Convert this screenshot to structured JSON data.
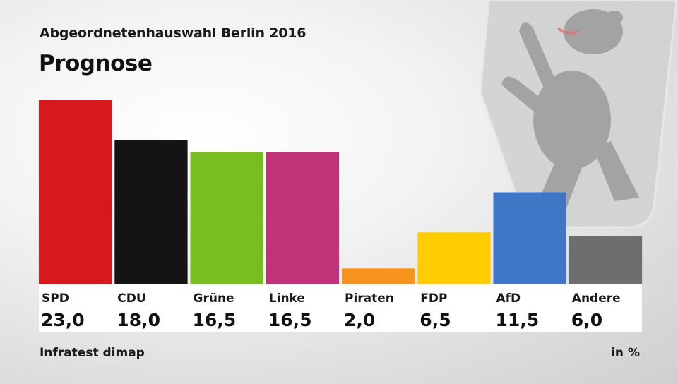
{
  "header": {
    "supertitle": "Abgeordnetenhauswahl Berlin 2016",
    "title": "Prognose"
  },
  "footer": {
    "source": "Infratest dimap",
    "unit": "in %"
  },
  "background_icon": "berlin-bear-crest-icon",
  "chart_data": {
    "type": "bar",
    "categories": [
      "SPD",
      "CDU",
      "Grüne",
      "Linke",
      "Piraten",
      "FDP",
      "AfD",
      "Andere"
    ],
    "values": [
      23.0,
      18.0,
      16.5,
      16.5,
      2.0,
      6.5,
      11.5,
      6.0
    ],
    "value_labels": [
      "23,0",
      "18,0",
      "16,5",
      "16,5",
      "2,0",
      "6,5",
      "11,5",
      "6,0"
    ],
    "colors": [
      "#d7191c",
      "#141414",
      "#78be20",
      "#c23279",
      "#f7941d",
      "#ffcc00",
      "#3f76c6",
      "#6e6e70"
    ],
    "ylim": [
      0,
      23.0
    ],
    "grid": false,
    "legend": "none"
  }
}
